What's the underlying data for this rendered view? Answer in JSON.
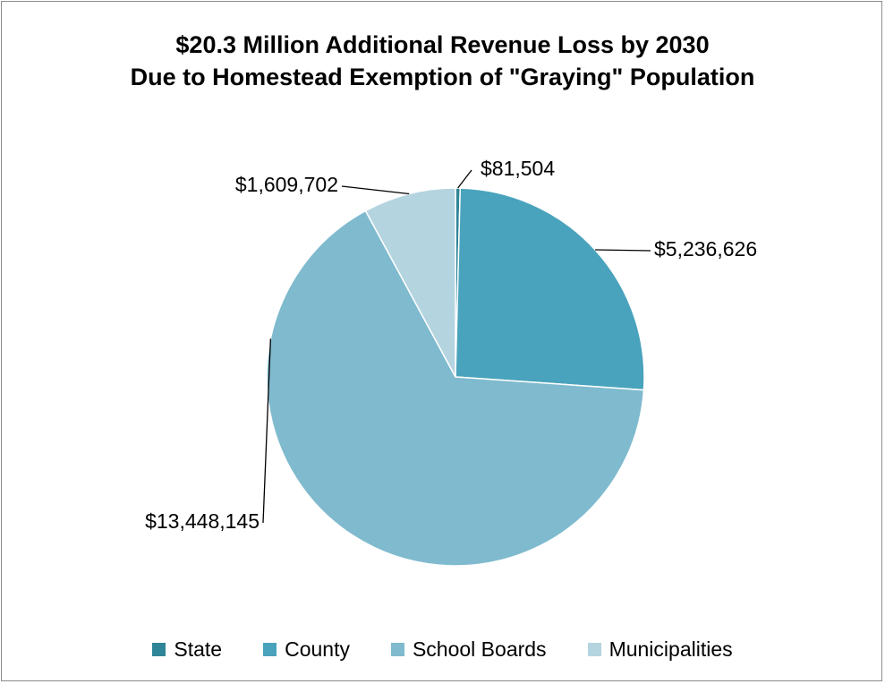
{
  "chart_data": {
    "type": "pie",
    "title": "$20.3 Million Additional Revenue Loss by 2030 Due to Homestead Exemption of \"Graying\" Population",
    "title_lines": [
      "$20.3 Million Additional Revenue Loss by 2030",
      "Due to Homestead Exemption of \"Graying\" Population"
    ],
    "categories": [
      "State",
      "County",
      "School Boards",
      "Municipalities"
    ],
    "values": [
      81504,
      5236626,
      13448145,
      1609702
    ],
    "data_labels": [
      "$81,504",
      "$5,236,626",
      "$13,448,145",
      "$1,609,702"
    ],
    "colors": [
      "#2f8598",
      "#4aa3bc",
      "#7fbace",
      "#b4d4e0"
    ],
    "legend_position": "bottom",
    "start_angle": "12 o'clock",
    "direction": "clockwise"
  }
}
